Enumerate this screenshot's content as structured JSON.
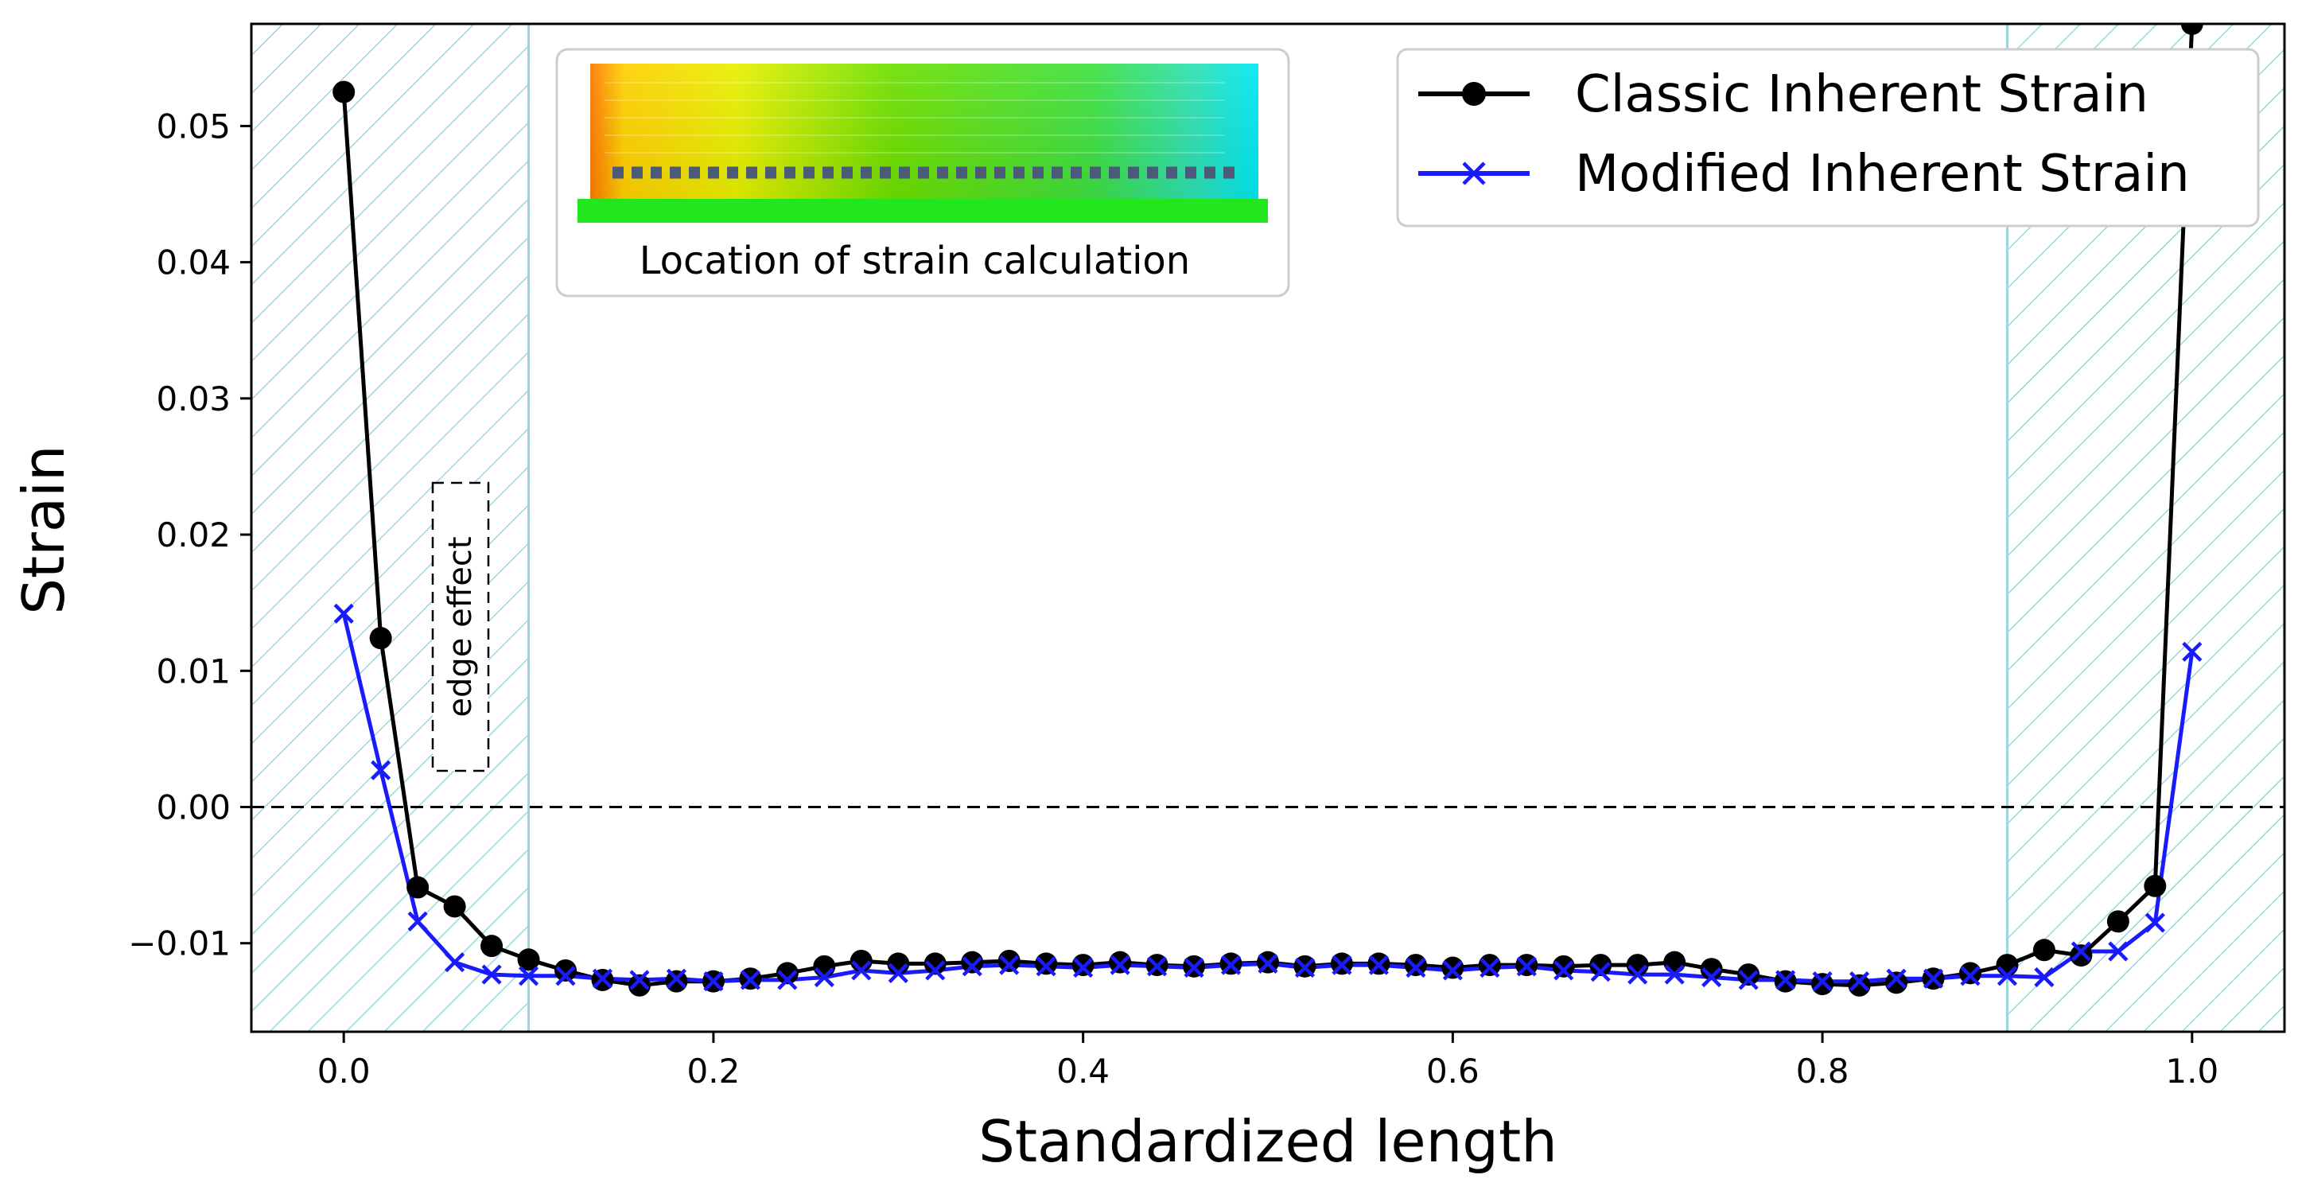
{
  "chart_data": {
    "type": "line",
    "title": "",
    "xlabel": "Standardized length",
    "ylabel": "Strain",
    "xlim": [
      -0.05,
      1.05
    ],
    "ylim": [
      -0.0165,
      0.0575
    ],
    "x_ticks": [
      0.0,
      0.2,
      0.4,
      0.6,
      0.8,
      1.0
    ],
    "x_tick_labels": [
      "0.0",
      "0.2",
      "0.4",
      "0.6",
      "0.8",
      "1.0"
    ],
    "y_ticks": [
      -0.01,
      0.0,
      0.01,
      0.02,
      0.03,
      0.04,
      0.05
    ],
    "y_tick_labels": [
      "−0.01",
      "0.00",
      "0.01",
      "0.02",
      "0.03",
      "0.04",
      "0.05"
    ],
    "grid": false,
    "legend_position": "top-right",
    "reference_line": {
      "y": 0.0,
      "style": "dashed",
      "color": "#000000"
    },
    "shaded_regions": [
      {
        "x_start": -0.05,
        "x_end": 0.1,
        "pattern": "hatch",
        "color": "#9bd5e3"
      },
      {
        "x_start": 0.9,
        "x_end": 1.05,
        "pattern": "hatch",
        "color": "#9bd5e3"
      }
    ],
    "annotations": {
      "edge_effect": "edge effect",
      "inset_caption": "Location of strain calculation"
    },
    "series": [
      {
        "name": "Classic Inherent Strain",
        "color": "#000000",
        "marker": "circle",
        "x": [
          0.0,
          0.02,
          0.04,
          0.06,
          0.08,
          0.1,
          0.12,
          0.14,
          0.16,
          0.18,
          0.2,
          0.22,
          0.24,
          0.26,
          0.28,
          0.3,
          0.32,
          0.34,
          0.36,
          0.38,
          0.4,
          0.42,
          0.44,
          0.46,
          0.48,
          0.5,
          0.52,
          0.54,
          0.56,
          0.58,
          0.6,
          0.62,
          0.64,
          0.66,
          0.68,
          0.7,
          0.72,
          0.74,
          0.76,
          0.78,
          0.8,
          0.82,
          0.84,
          0.86,
          0.88,
          0.9,
          0.92,
          0.94,
          0.96,
          0.98,
          1.0
        ],
        "values": [
          0.0525,
          0.0124,
          -0.0059,
          -0.0073,
          -0.0102,
          -0.0112,
          -0.012,
          -0.0127,
          -0.0131,
          -0.0128,
          -0.0128,
          -0.0126,
          -0.0122,
          -0.0117,
          -0.0113,
          -0.0115,
          -0.0115,
          -0.0114,
          -0.0113,
          -0.0115,
          -0.0116,
          -0.0114,
          -0.0116,
          -0.0117,
          -0.0115,
          -0.0114,
          -0.0117,
          -0.0115,
          -0.0115,
          -0.0116,
          -0.0118,
          -0.0116,
          -0.0116,
          -0.0117,
          -0.0116,
          -0.0116,
          -0.0114,
          -0.0119,
          -0.0123,
          -0.0128,
          -0.013,
          -0.0131,
          -0.0129,
          -0.0126,
          -0.0122,
          -0.0116,
          -0.0105,
          -0.0109,
          -0.0084,
          -0.0058,
          0.0575
        ]
      },
      {
        "name": "Modified Inherent Strain",
        "color": "#1a1aff",
        "marker": "x",
        "x": [
          0.0,
          0.02,
          0.04,
          0.06,
          0.08,
          0.1,
          0.12,
          0.14,
          0.16,
          0.18,
          0.2,
          0.22,
          0.24,
          0.26,
          0.28,
          0.3,
          0.32,
          0.34,
          0.36,
          0.38,
          0.4,
          0.42,
          0.44,
          0.46,
          0.48,
          0.5,
          0.52,
          0.54,
          0.56,
          0.58,
          0.6,
          0.62,
          0.64,
          0.66,
          0.68,
          0.7,
          0.72,
          0.74,
          0.76,
          0.78,
          0.8,
          0.82,
          0.84,
          0.86,
          0.88,
          0.9,
          0.92,
          0.94,
          0.96,
          0.98,
          1.0
        ],
        "values": [
          0.0142,
          0.0027,
          -0.0084,
          -0.0114,
          -0.0123,
          -0.0124,
          -0.0124,
          -0.0126,
          -0.0127,
          -0.0126,
          -0.0128,
          -0.0127,
          -0.0127,
          -0.0125,
          -0.012,
          -0.0122,
          -0.012,
          -0.0117,
          -0.0116,
          -0.0117,
          -0.0118,
          -0.0116,
          -0.0117,
          -0.0118,
          -0.0116,
          -0.0115,
          -0.0118,
          -0.0116,
          -0.0116,
          -0.0118,
          -0.012,
          -0.0118,
          -0.0117,
          -0.012,
          -0.0121,
          -0.0123,
          -0.0123,
          -0.0125,
          -0.0127,
          -0.0127,
          -0.0128,
          -0.0128,
          -0.0126,
          -0.0126,
          -0.0124,
          -0.0124,
          -0.0125,
          -0.0106,
          -0.0106,
          -0.0085,
          0.0114
        ]
      }
    ]
  }
}
